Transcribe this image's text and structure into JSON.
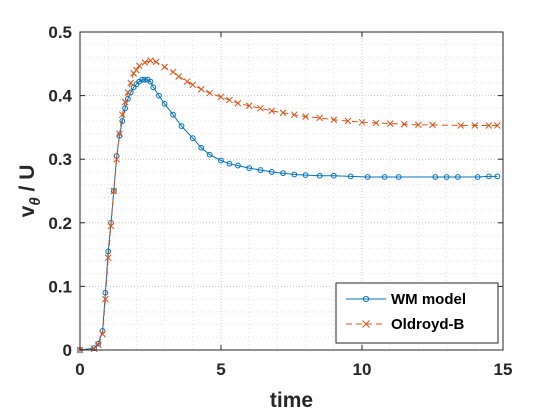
{
  "chart_data": {
    "type": "line",
    "xlabel": "time",
    "ylabel": "v",
    "ylabel_subscript": "θ",
    "ylabel_suffix": " / U",
    "xlim": [
      0,
      15
    ],
    "ylim": [
      0,
      0.5
    ],
    "xticks": [
      0,
      5,
      10,
      15
    ],
    "xtick_labels": [
      "0",
      "5",
      "10",
      "15"
    ],
    "yticks": [
      0,
      0.1,
      0.2,
      0.3,
      0.4,
      0.5
    ],
    "ytick_labels": [
      "0",
      "0.1",
      "0.2",
      "0.3",
      "0.4",
      "0.5"
    ],
    "grid": "major and minor, dotted",
    "legend_position": "bottom-right",
    "series": [
      {
        "name": "WM model",
        "color": "#0072BD",
        "line_style": "solid",
        "marker": "circle",
        "x": [
          0,
          0.5,
          0.65,
          0.8,
          0.9,
          1.0,
          1.1,
          1.2,
          1.3,
          1.4,
          1.5,
          1.6,
          1.7,
          1.8,
          1.9,
          2.0,
          2.1,
          2.2,
          2.3,
          2.4,
          2.5,
          2.6,
          2.8,
          3.0,
          3.3,
          3.6,
          4.0,
          4.3,
          4.6,
          5.0,
          5.3,
          5.6,
          6.0,
          6.4,
          6.8,
          7.2,
          7.6,
          8.0,
          8.5,
          9.0,
          9.6,
          10.2,
          10.8,
          11.3,
          12.6,
          13.0,
          13.4,
          14.1,
          14.5,
          14.8
        ],
        "y": [
          0,
          0.003,
          0.01,
          0.03,
          0.09,
          0.155,
          0.2,
          0.25,
          0.305,
          0.337,
          0.36,
          0.38,
          0.395,
          0.405,
          0.413,
          0.418,
          0.422,
          0.425,
          0.425,
          0.425,
          0.422,
          0.413,
          0.4,
          0.387,
          0.37,
          0.352,
          0.333,
          0.318,
          0.307,
          0.298,
          0.293,
          0.29,
          0.286,
          0.283,
          0.28,
          0.278,
          0.276,
          0.275,
          0.274,
          0.274,
          0.273,
          0.272,
          0.272,
          0.272,
          0.272,
          0.272,
          0.272,
          0.272,
          0.273,
          0.273
        ]
      },
      {
        "name": "Oldroyd-B",
        "color": "#D95319",
        "line_style": "dashed",
        "marker": "x",
        "x": [
          0,
          0.5,
          0.65,
          0.8,
          0.9,
          1.0,
          1.1,
          1.2,
          1.3,
          1.4,
          1.5,
          1.6,
          1.7,
          1.8,
          1.9,
          2.0,
          2.1,
          2.3,
          2.5,
          2.7,
          3.0,
          3.3,
          3.5,
          3.8,
          4.0,
          4.3,
          4.6,
          5.0,
          5.3,
          5.6,
          6.0,
          6.4,
          6.8,
          7.2,
          7.6,
          8.0,
          8.5,
          9.0,
          9.5,
          10.0,
          10.5,
          11.0,
          11.5,
          12.0,
          12.5,
          13.5,
          14.0,
          14.5,
          14.8
        ],
        "y": [
          0,
          0.002,
          0.008,
          0.025,
          0.08,
          0.145,
          0.195,
          0.25,
          0.3,
          0.34,
          0.37,
          0.39,
          0.405,
          0.42,
          0.435,
          0.44,
          0.447,
          0.452,
          0.455,
          0.453,
          0.445,
          0.437,
          0.43,
          0.422,
          0.417,
          0.41,
          0.404,
          0.398,
          0.393,
          0.388,
          0.384,
          0.38,
          0.376,
          0.373,
          0.37,
          0.367,
          0.365,
          0.362,
          0.36,
          0.358,
          0.357,
          0.356,
          0.355,
          0.354,
          0.354,
          0.353,
          0.353,
          0.353,
          0.353
        ]
      }
    ]
  }
}
